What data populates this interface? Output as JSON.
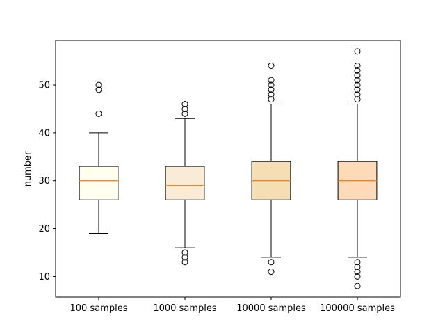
{
  "chart_data": {
    "type": "box",
    "title": "",
    "xlabel": "",
    "ylabel": "number",
    "ylim": [
      5.7,
      59.3
    ],
    "yticks": [
      10,
      20,
      30,
      40,
      50
    ],
    "grid": false,
    "legend": "none",
    "categories": [
      "100 samples",
      "1000 samples",
      "10000 samples",
      "100000 samples"
    ],
    "fill_colors": [
      "#fffff0",
      "#faebd7",
      "#f5deb3",
      "#ffdab9"
    ],
    "median_color": "#ff7f0e",
    "boxes": [
      {
        "label": "100 samples",
        "whisker_low": 19,
        "q1": 26,
        "median": 30,
        "q3": 33,
        "whisker_high": 40,
        "outliers": [
          44,
          49,
          50
        ]
      },
      {
        "label": "1000 samples",
        "whisker_low": 16,
        "q1": 26,
        "median": 29,
        "q3": 33,
        "whisker_high": 43,
        "outliers": [
          13,
          14,
          15,
          44,
          45,
          46
        ]
      },
      {
        "label": "10000 samples",
        "whisker_low": 14,
        "q1": 26,
        "median": 30,
        "q3": 34,
        "whisker_high": 46,
        "outliers": [
          11,
          13,
          47,
          48,
          49,
          50,
          51,
          54
        ]
      },
      {
        "label": "100000 samples",
        "whisker_low": 14,
        "q1": 26,
        "median": 30,
        "q3": 34,
        "whisker_high": 46,
        "outliers": [
          8,
          10,
          11,
          12,
          13,
          47,
          48,
          49,
          50,
          51,
          52,
          53,
          54,
          57
        ]
      }
    ]
  }
}
